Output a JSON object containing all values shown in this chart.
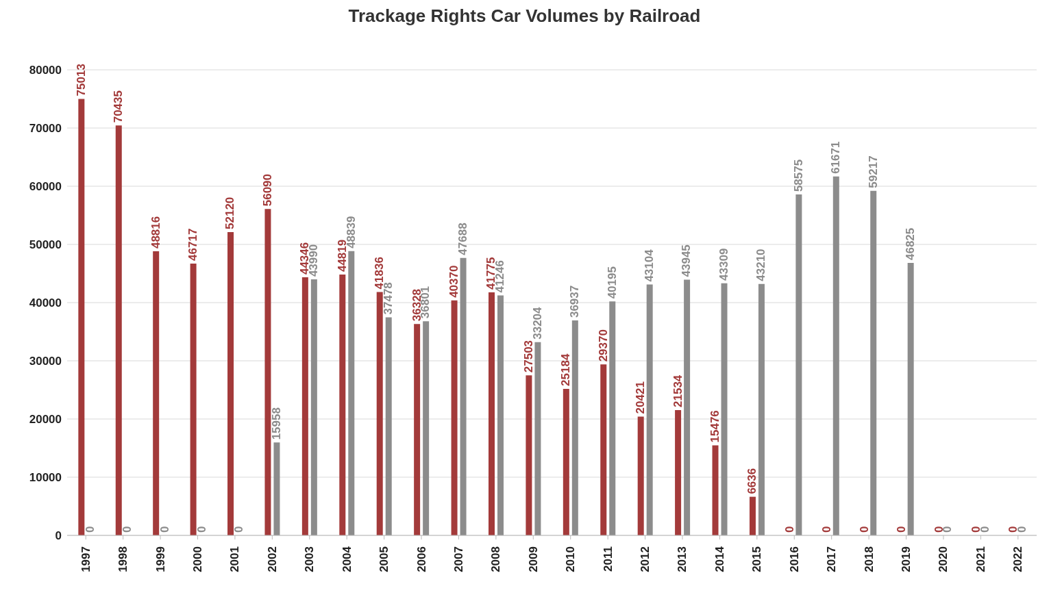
{
  "chart_data": {
    "type": "bar",
    "title": "Trackage Rights Car Volumes by Railroad",
    "categories": [
      "1997",
      "1998",
      "1999",
      "2000",
      "2001",
      "2002",
      "2003",
      "2004",
      "2005",
      "2006",
      "2007",
      "2008",
      "2009",
      "2010",
      "2011",
      "2012",
      "2013",
      "2014",
      "2015",
      "2016",
      "2017",
      "2018",
      "2019",
      "2020",
      "2021",
      "2022"
    ],
    "series": [
      {
        "color": "#a33a3a",
        "values": [
          75013,
          70435,
          48816,
          46717,
          52120,
          56090,
          44346,
          44819,
          41836,
          36328,
          40370,
          41775,
          27503,
          25184,
          29370,
          20421,
          21534,
          15476,
          6636,
          0,
          0,
          0,
          0,
          0,
          0,
          0
        ]
      },
      {
        "color": "#8c8c8c",
        "values": [
          0,
          0,
          0,
          0,
          0,
          15958,
          43990,
          48839,
          37478,
          36801,
          47688,
          41246,
          33204,
          36937,
          40195,
          43104,
          43945,
          43309,
          43210,
          58575,
          61671,
          59217,
          46825,
          0,
          0,
          0
        ]
      }
    ],
    "ylim": [
      0,
      80000
    ],
    "yticks": [
      0,
      10000,
      20000,
      30000,
      40000,
      50000,
      60000,
      70000,
      80000
    ],
    "grid": "y",
    "data_labels": true
  }
}
